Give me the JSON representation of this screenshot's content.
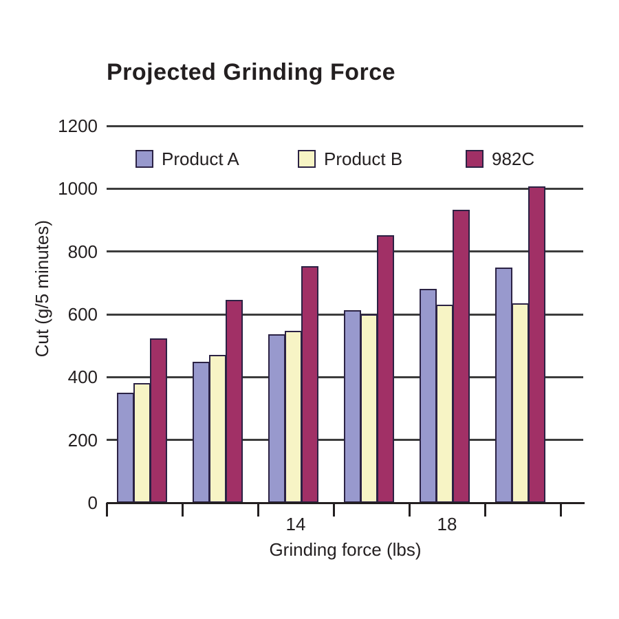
{
  "chart_data": {
    "type": "bar",
    "title": "Projected Grinding Force",
    "xlabel": "Grinding force (lbs)",
    "ylabel": "Cut (g/5 minutes)",
    "ylim": [
      0,
      1200
    ],
    "yticks": [
      0,
      200,
      400,
      600,
      800,
      1000,
      1200
    ],
    "grid": "horizontal",
    "legend_position": "top-inside",
    "group_count": 6,
    "x_tick_labels": [
      "",
      "",
      "14",
      "",
      "18",
      ""
    ],
    "series": [
      {
        "name": "Product A",
        "color": "#9899cd",
        "values": [
          350,
          448,
          537,
          614,
          682,
          750
        ]
      },
      {
        "name": "Product B",
        "color": "#f7f4c5",
        "values": [
          381,
          470,
          547,
          600,
          630,
          635
        ]
      },
      {
        "name": "982C",
        "color": "#a13066",
        "values": [
          523,
          645,
          753,
          851,
          933,
          1008
        ]
      }
    ],
    "colors": {
      "bar_outline": "#2b2244",
      "gridline": "#3c3c3c",
      "axis": "#231f20",
      "text": "#231f20",
      "background": "#ffffff"
    }
  }
}
